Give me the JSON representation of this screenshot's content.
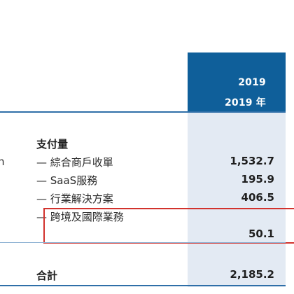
{
  "header": {
    "year": "2019",
    "year_label": "2019 年"
  },
  "table": {
    "edge_glyph": "n",
    "section_title": "支付量",
    "rows": [
      {
        "label": "— 綜合商戶收單",
        "value": "1,532.7"
      },
      {
        "label": "— SaaS服務",
        "value": "195.9"
      },
      {
        "label": "— 行業解決方案",
        "value": "406.5"
      },
      {
        "label": "— 跨境及國際業務",
        "value": "50.1"
      }
    ],
    "total_label": "合計",
    "total_value": "2,185.2"
  },
  "colors": {
    "header_blue": "#0f5f9a",
    "column_shade": "#e3eaf3",
    "highlight_red": "#d2322d"
  }
}
